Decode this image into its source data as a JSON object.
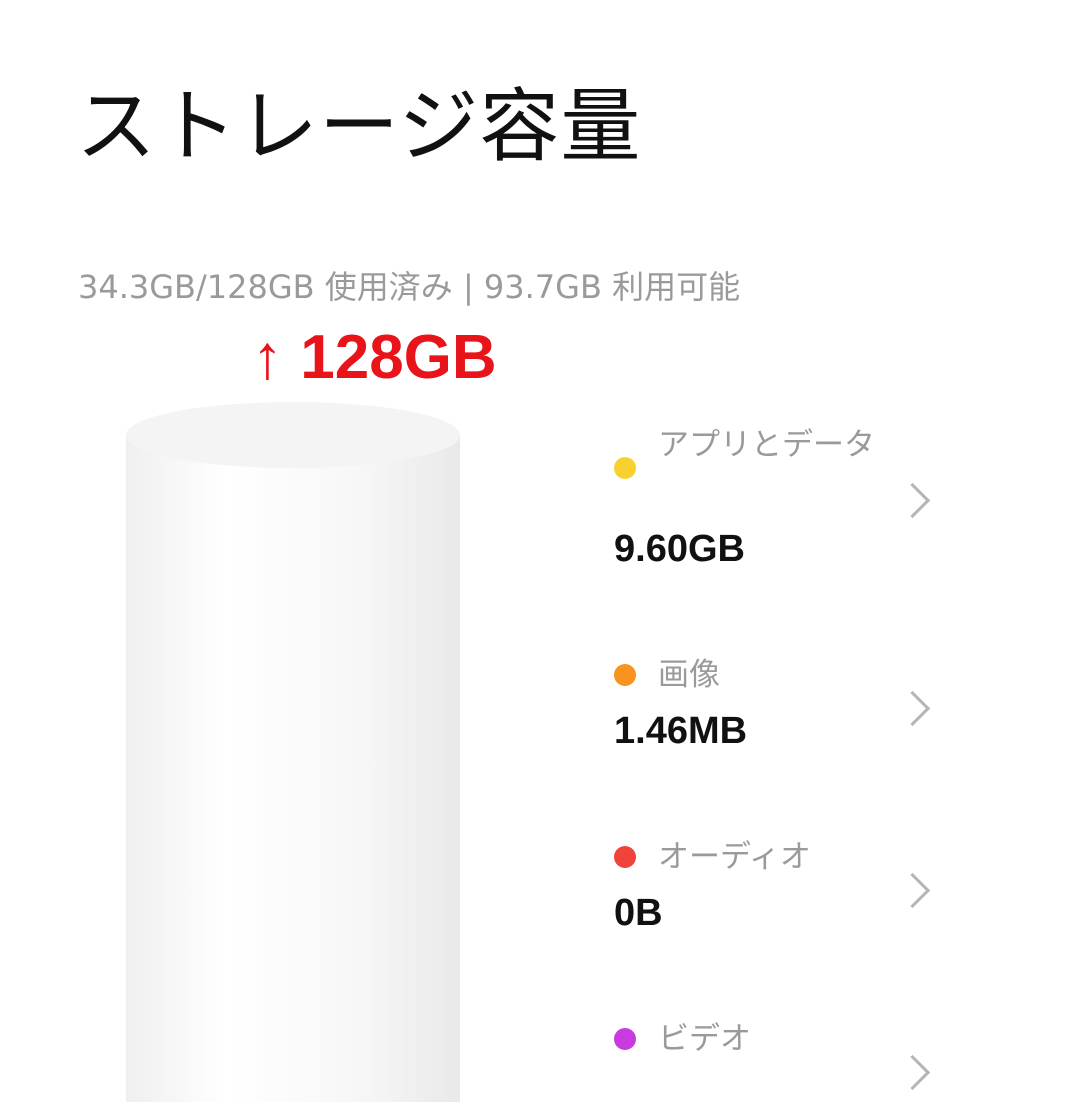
{
  "header": {
    "title": "ストレージ容量"
  },
  "summary": "34.3GB/128GB 使用済み | 93.7GB 利用可能",
  "annotation": "↑ 128GB",
  "categories": [
    {
      "label": "アプリとデータ",
      "value": "9.60GB",
      "color": "#f9d12f",
      "icon": "chevron-right"
    },
    {
      "label": "画像",
      "value": "1.46MB",
      "color": "#f7931e",
      "icon": "chevron-right"
    },
    {
      "label": "オーディオ",
      "value": "0B",
      "color": "#f0443a",
      "icon": "chevron-right"
    },
    {
      "label": "ビデオ",
      "value": "",
      "color": "#c93ae0",
      "icon": "chevron-right"
    }
  ]
}
